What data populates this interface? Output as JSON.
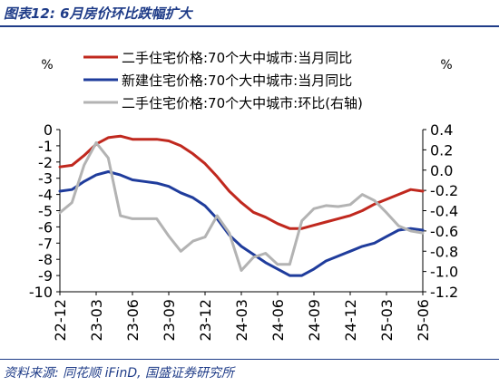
{
  "figure_title": "图表12:  6月房价环比跌幅扩大",
  "source": "资料来源:  同花顺 iFinD, 国盛证券研究所",
  "chart_data": {
    "type": "line",
    "left_unit": "%",
    "right_unit": "%",
    "categories": [
      "22-12",
      "23-01",
      "23-02",
      "23-03",
      "23-04",
      "23-05",
      "23-06",
      "23-07",
      "23-08",
      "23-09",
      "23-10",
      "23-11",
      "23-12",
      "24-01",
      "24-02",
      "24-03",
      "24-04",
      "24-05",
      "24-06",
      "24-07",
      "24-08",
      "24-09",
      "24-10",
      "24-11",
      "24-12",
      "25-01",
      "25-02",
      "25-03",
      "25-04",
      "25-05",
      "25-06"
    ],
    "x_tick_labels": [
      "22-12",
      "23-03",
      "23-06",
      "23-09",
      "23-12",
      "24-03",
      "24-06",
      "24-09",
      "24-12",
      "25-03",
      "25-06"
    ],
    "left_axis": {
      "min": -10,
      "max": 0,
      "ticks": [
        "0",
        "-1",
        "-2",
        "-3",
        "-4",
        "-5",
        "-6",
        "-7",
        "-8",
        "-9",
        "-10"
      ]
    },
    "right_axis": {
      "min": -1.2,
      "max": 0.4,
      "ticks": [
        "0.4",
        "0.2",
        "0.0",
        "-0.2",
        "-0.4",
        "-0.6",
        "-0.8",
        "-1.0",
        "-1.2"
      ]
    },
    "series": [
      {
        "name": "二手住宅价格:70个大中城市:当月同比",
        "axis": "left",
        "color": "#c0281e",
        "values": [
          -2.3,
          -2.2,
          -1.6,
          -0.9,
          -0.5,
          -0.4,
          -0.6,
          -0.6,
          -0.6,
          -0.7,
          -1.0,
          -1.5,
          -2.1,
          -2.9,
          -3.8,
          -4.5,
          -5.1,
          -5.4,
          -5.8,
          -6.1,
          -6.1,
          -5.9,
          -5.7,
          -5.5,
          -5.3,
          -5.0,
          -4.6,
          -4.3,
          -4.0,
          -3.7,
          -3.8
        ]
      },
      {
        "name": "新建住宅价格:70个大中城市:当月同比",
        "axis": "left",
        "color": "#1f3c9c",
        "values": [
          -3.8,
          -3.7,
          -3.2,
          -2.8,
          -2.6,
          -2.8,
          -3.1,
          -3.2,
          -3.3,
          -3.5,
          -3.9,
          -4.2,
          -4.7,
          -5.5,
          -6.5,
          -7.2,
          -7.7,
          -8.2,
          -8.6,
          -9.0,
          -9.0,
          -8.6,
          -8.1,
          -7.8,
          -7.5,
          -7.2,
          -7.0,
          -6.6,
          -6.2,
          -6.1,
          -6.2
        ]
      },
      {
        "name": "二手住宅价格:70个大中城市:环比(右轴)",
        "axis": "right",
        "color": "#b3b3b3",
        "values": [
          -0.42,
          -0.32,
          0.05,
          0.27,
          0.12,
          -0.45,
          -0.48,
          -0.48,
          -0.48,
          -0.65,
          -0.8,
          -0.7,
          -0.66,
          -0.45,
          -0.62,
          -0.99,
          -0.86,
          -0.82,
          -0.93,
          -0.93,
          -0.5,
          -0.38,
          -0.35,
          -0.36,
          -0.34,
          -0.24,
          -0.3,
          -0.42,
          -0.55,
          -0.6,
          -0.62
        ]
      }
    ],
    "legend": "top-inside",
    "grid": false
  }
}
